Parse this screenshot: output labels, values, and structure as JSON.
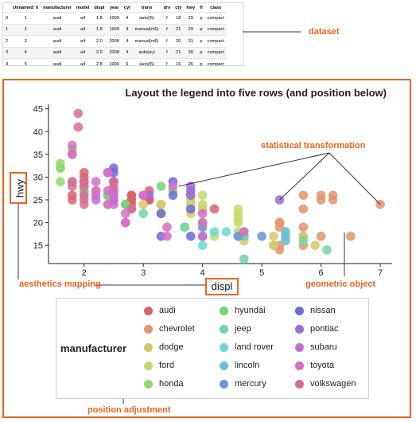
{
  "dataframe": {
    "columns": [
      "Unnamed: 0",
      "manufacturer",
      "model",
      "displ",
      "year",
      "cyl",
      "trans",
      "drv",
      "cty",
      "hwy",
      "fl",
      "class"
    ],
    "rows": [
      [
        "0",
        "1",
        "audi",
        "a4",
        "1.8",
        "1999",
        "4",
        "auto(l5)",
        "f",
        "18",
        "29",
        "p",
        "compact"
      ],
      [
        "1",
        "2",
        "audi",
        "a4",
        "1.8",
        "1999",
        "4",
        "manual(m5)",
        "f",
        "21",
        "29",
        "p",
        "compact"
      ],
      [
        "2",
        "3",
        "audi",
        "a4",
        "2.0",
        "2008",
        "4",
        "manual(m6)",
        "f",
        "20",
        "31",
        "p",
        "compact"
      ],
      [
        "3",
        "4",
        "audi",
        "a4",
        "2.0",
        "2008",
        "4",
        "auto(av)",
        "f",
        "21",
        "30",
        "p",
        "compact"
      ],
      [
        "4",
        "5",
        "audi",
        "a4",
        "2.8",
        "1999",
        "6",
        "auto(l5)",
        "f",
        "16",
        "26",
        "p",
        "compact"
      ]
    ]
  },
  "annotations": {
    "dataset": "dataset",
    "statistical_transformation": "statistical transformation",
    "aesthetics_mapping": "aesthetics mapping",
    "geometric_object": "geometric object",
    "position_adjustment": "position adjustment"
  },
  "colors": {
    "accent": "#e8651e"
  },
  "chart_data": {
    "type": "scatter",
    "title": "Layout the legend into five rows (and position below)",
    "xlabel": "displ",
    "ylabel": "hwy",
    "xlim": [
      1.4,
      7.2
    ],
    "ylim": [
      11,
      46
    ],
    "xticks": [
      2,
      3,
      4,
      5,
      6,
      7
    ],
    "yticks": [
      15,
      20,
      25,
      30,
      35,
      40,
      45
    ],
    "grid": false,
    "legend_position": "bottom",
    "legend_title": "manufacturer",
    "series": [
      {
        "name": "audi",
        "color": "#d9636b",
        "points": [
          [
            1.8,
            29
          ],
          [
            1.8,
            29
          ],
          [
            2.0,
            31
          ],
          [
            2.0,
            30
          ],
          [
            2.8,
            26
          ],
          [
            2.8,
            26
          ],
          [
            3.1,
            27
          ],
          [
            1.8,
            26
          ],
          [
            1.8,
            25
          ],
          [
            2.0,
            28
          ],
          [
            2.0,
            27
          ],
          [
            2.8,
            25
          ],
          [
            2.8,
            25
          ],
          [
            3.1,
            25
          ],
          [
            3.1,
            25
          ],
          [
            2.8,
            24
          ],
          [
            3.1,
            25
          ],
          [
            4.2,
            23
          ]
        ]
      },
      {
        "name": "chevrolet",
        "color": "#e0956c",
        "points": [
          [
            5.3,
            20
          ],
          [
            5.3,
            15
          ],
          [
            5.3,
            20
          ],
          [
            5.7,
            17
          ],
          [
            6.0,
            17
          ],
          [
            5.7,
            26
          ],
          [
            5.7,
            23
          ],
          [
            6.2,
            26
          ],
          [
            6.2,
            25
          ],
          [
            7.0,
            24
          ],
          [
            5.3,
            19
          ],
          [
            5.3,
            14
          ],
          [
            5.7,
            15
          ],
          [
            6.5,
            17
          ],
          [
            6.0,
            26
          ],
          [
            6.0,
            25
          ],
          [
            5.7,
            19
          ],
          [
            3.8,
            26
          ]
        ]
      },
      {
        "name": "dodge",
        "color": "#d8c66c",
        "points": [
          [
            2.4,
            24
          ],
          [
            3.0,
            24
          ],
          [
            3.3,
            22
          ],
          [
            3.3,
            22
          ],
          [
            3.3,
            24
          ],
          [
            3.3,
            24
          ],
          [
            3.8,
            24
          ],
          [
            3.8,
            23
          ],
          [
            3.8,
            22
          ],
          [
            4.0,
            23
          ],
          [
            3.7,
            19
          ],
          [
            4.7,
            18
          ],
          [
            4.7,
            17
          ],
          [
            5.2,
            15
          ],
          [
            5.2,
            15
          ],
          [
            5.7,
            17
          ],
          [
            5.9,
            15
          ],
          [
            4.7,
            17
          ],
          [
            4.7,
            16
          ],
          [
            5.2,
            17
          ]
        ]
      },
      {
        "name": "ford",
        "color": "#c6d86c",
        "points": [
          [
            4.0,
            19
          ],
          [
            4.0,
            20
          ],
          [
            4.6,
            20
          ],
          [
            4.6,
            17
          ],
          [
            5.4,
            17
          ],
          [
            5.4,
            16
          ],
          [
            3.8,
            26
          ],
          [
            3.8,
            25
          ],
          [
            4.0,
            26
          ],
          [
            4.0,
            24
          ],
          [
            4.6,
            21
          ],
          [
            4.6,
            22
          ],
          [
            4.6,
            23
          ],
          [
            5.4,
            18
          ],
          [
            4.2,
            17
          ],
          [
            4.6,
            18
          ]
        ]
      },
      {
        "name": "honda",
        "color": "#94d86c",
        "points": [
          [
            1.6,
            33
          ],
          [
            1.6,
            32
          ],
          [
            1.6,
            32
          ],
          [
            1.6,
            29
          ],
          [
            1.8,
            36
          ],
          [
            1.8,
            36
          ],
          [
            1.8,
            29
          ],
          [
            2.0,
            26
          ],
          [
            2.2,
            27
          ]
        ]
      },
      {
        "name": "hyundai",
        "color": "#6cd872",
        "points": [
          [
            2.4,
            26
          ],
          [
            2.4,
            26
          ],
          [
            2.5,
            26
          ],
          [
            2.5,
            26
          ],
          [
            3.3,
            28
          ],
          [
            2.0,
            28
          ],
          [
            2.0,
            29
          ],
          [
            2.7,
            24
          ],
          [
            2.7,
            24
          ],
          [
            2.0,
            27
          ],
          [
            3.5,
            27
          ]
        ]
      },
      {
        "name": "jeep",
        "color": "#6cd8a5",
        "points": [
          [
            3.0,
            22
          ],
          [
            3.7,
            19
          ],
          [
            4.0,
            20
          ],
          [
            4.7,
            17
          ],
          [
            4.7,
            12
          ],
          [
            4.7,
            17
          ],
          [
            5.7,
            16
          ],
          [
            6.1,
            14
          ]
        ]
      },
      {
        "name": "land rover",
        "color": "#6cd8d5",
        "points": [
          [
            4.0,
            15
          ],
          [
            4.2,
            18
          ],
          [
            4.4,
            18
          ],
          [
            4.6,
            17
          ]
        ]
      },
      {
        "name": "lincoln",
        "color": "#6cbed8",
        "points": [
          [
            5.4,
            17
          ],
          [
            5.4,
            16
          ],
          [
            5.4,
            18
          ]
        ]
      },
      {
        "name": "mercury",
        "color": "#6c96d8",
        "points": [
          [
            4.0,
            19
          ],
          [
            4.0,
            17
          ],
          [
            4.6,
            17
          ],
          [
            5.0,
            17
          ]
        ]
      },
      {
        "name": "nissan",
        "color": "#6c6cd8",
        "points": [
          [
            2.5,
            32
          ],
          [
            2.5,
            31
          ],
          [
            3.5,
            29
          ],
          [
            3.5,
            26
          ],
          [
            3.3,
            22
          ],
          [
            3.3,
            17
          ],
          [
            3.8,
            17
          ],
          [
            3.8,
            23
          ]
        ]
      },
      {
        "name": "pontiac",
        "color": "#9a6cd8",
        "points": [
          [
            3.1,
            26
          ],
          [
            3.8,
            28
          ],
          [
            3.8,
            26
          ],
          [
            3.8,
            27
          ],
          [
            5.3,
            25
          ]
        ]
      },
      {
        "name": "subaru",
        "color": "#c86cd8",
        "points": [
          [
            2.5,
            26
          ],
          [
            2.5,
            27
          ],
          [
            2.2,
            26
          ],
          [
            2.2,
            25
          ],
          [
            2.5,
            25
          ],
          [
            2.5,
            24
          ],
          [
            2.5,
            27
          ],
          [
            2.5,
            25
          ]
        ]
      },
      {
        "name": "toyota",
        "color": "#d86cc6",
        "points": [
          [
            2.7,
            20
          ],
          [
            2.7,
            22
          ],
          [
            3.4,
            17
          ],
          [
            3.4,
            19
          ],
          [
            4.0,
            17
          ],
          [
            4.7,
            18
          ],
          [
            2.2,
            29
          ],
          [
            2.2,
            27
          ],
          [
            2.4,
            31
          ],
          [
            2.4,
            31
          ],
          [
            3.0,
            26
          ],
          [
            3.0,
            26
          ],
          [
            3.5,
            28
          ],
          [
            1.8,
            35
          ],
          [
            1.8,
            37
          ],
          [
            1.8,
            35
          ],
          [
            2.4,
            27
          ],
          [
            2.4,
            24
          ],
          [
            4.0,
            20
          ],
          [
            4.0,
            22
          ],
          [
            2.7,
            20
          ]
        ]
      },
      {
        "name": "volkswagen",
        "color": "#d86c96",
        "points": [
          [
            2.0,
            28
          ],
          [
            2.0,
            29
          ],
          [
            2.8,
            23
          ],
          [
            1.9,
            44
          ],
          [
            2.0,
            29
          ],
          [
            2.0,
            26
          ],
          [
            2.0,
            29
          ],
          [
            2.5,
            29
          ],
          [
            2.5,
            29
          ],
          [
            2.8,
            23
          ],
          [
            1.8,
            29
          ],
          [
            1.8,
            28
          ],
          [
            2.0,
            29
          ],
          [
            1.9,
            41
          ],
          [
            2.5,
            28
          ],
          [
            2.5,
            29
          ],
          [
            2.0,
            25
          ],
          [
            2.0,
            24
          ]
        ]
      }
    ]
  }
}
